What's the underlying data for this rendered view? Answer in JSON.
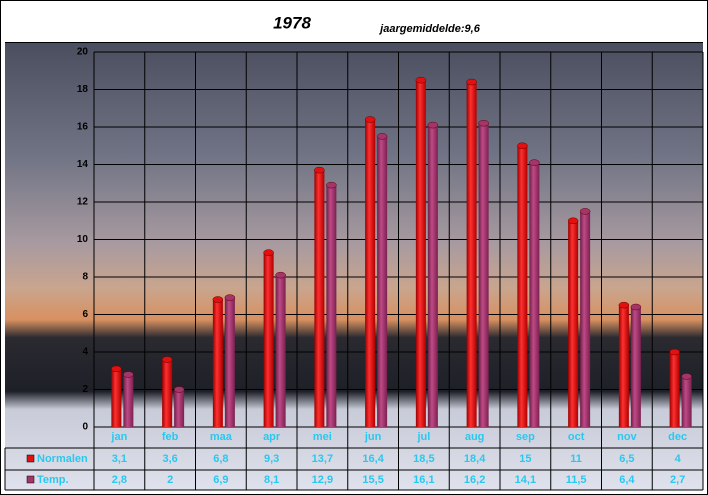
{
  "chart_data": {
    "type": "bar",
    "title": "1978",
    "subtitle": "jaargemiddelde:9,6",
    "categories": [
      "jan",
      "feb",
      "maa",
      "apr",
      "mei",
      "jun",
      "jul",
      "aug",
      "sep",
      "oct",
      "nov",
      "dec"
    ],
    "series": [
      {
        "name": "Normalen",
        "color": "#e41010",
        "values": [
          3.1,
          3.6,
          6.8,
          9.3,
          13.7,
          16.4,
          18.5,
          18.4,
          15,
          11,
          6.5,
          4
        ],
        "value_labels": [
          "3,1",
          "3,6",
          "6,8",
          "9,3",
          "13,7",
          "16,4",
          "18,5",
          "18,4",
          "15",
          "11",
          "6,5",
          "4"
        ]
      },
      {
        "name": "Temp.",
        "color": "#a3346c",
        "values": [
          2.8,
          2,
          6.9,
          8.1,
          12.9,
          15.5,
          16.1,
          16.2,
          14.1,
          11.5,
          6.4,
          2.7
        ],
        "value_labels": [
          "2,8",
          "2",
          "6,9",
          "8,1",
          "12,9",
          "15,5",
          "16,1",
          "16,2",
          "14,1",
          "11,5",
          "6,4",
          "2,7"
        ]
      }
    ],
    "ylim": [
      0,
      20
    ],
    "yticks": [
      0,
      2,
      4,
      6,
      8,
      10,
      12,
      14,
      16,
      18,
      20
    ],
    "grid": true
  }
}
